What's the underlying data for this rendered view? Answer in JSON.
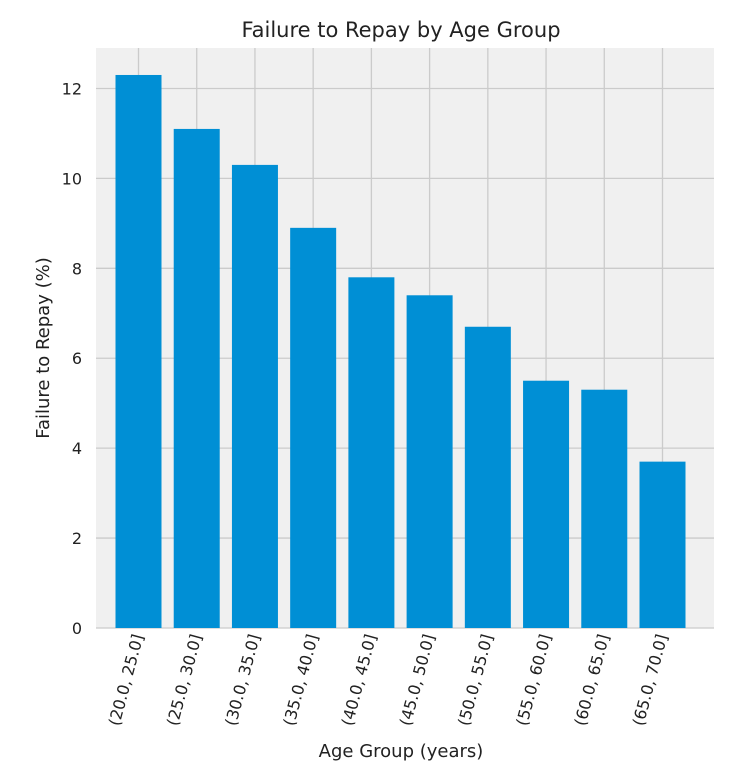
{
  "chart_data": {
    "type": "bar",
    "title": "Failure to Repay by Age Group",
    "xlabel": "Age Group (years)",
    "ylabel": "Failure to Repay (%)",
    "categories": [
      "(20.0, 25.0]",
      "(25.0, 30.0]",
      "(30.0, 35.0]",
      "(35.0, 40.0]",
      "(40.0, 45.0]",
      "(45.0, 50.0]",
      "(50.0, 55.0]",
      "(55.0, 60.0]",
      "(60.0, 65.0]",
      "(65.0, 70.0]"
    ],
    "values": [
      12.3,
      11.1,
      10.3,
      8.9,
      7.8,
      7.4,
      6.7,
      5.5,
      5.3,
      3.7
    ],
    "ylim": [
      0,
      12.9
    ],
    "yticks": [
      0,
      2,
      4,
      6,
      8,
      10,
      12
    ],
    "grid": true,
    "colors": {
      "bar": "#008fd5",
      "background": "#f0f0f0",
      "grid": "#cbcbcb",
      "figure": "#ffffff"
    }
  }
}
